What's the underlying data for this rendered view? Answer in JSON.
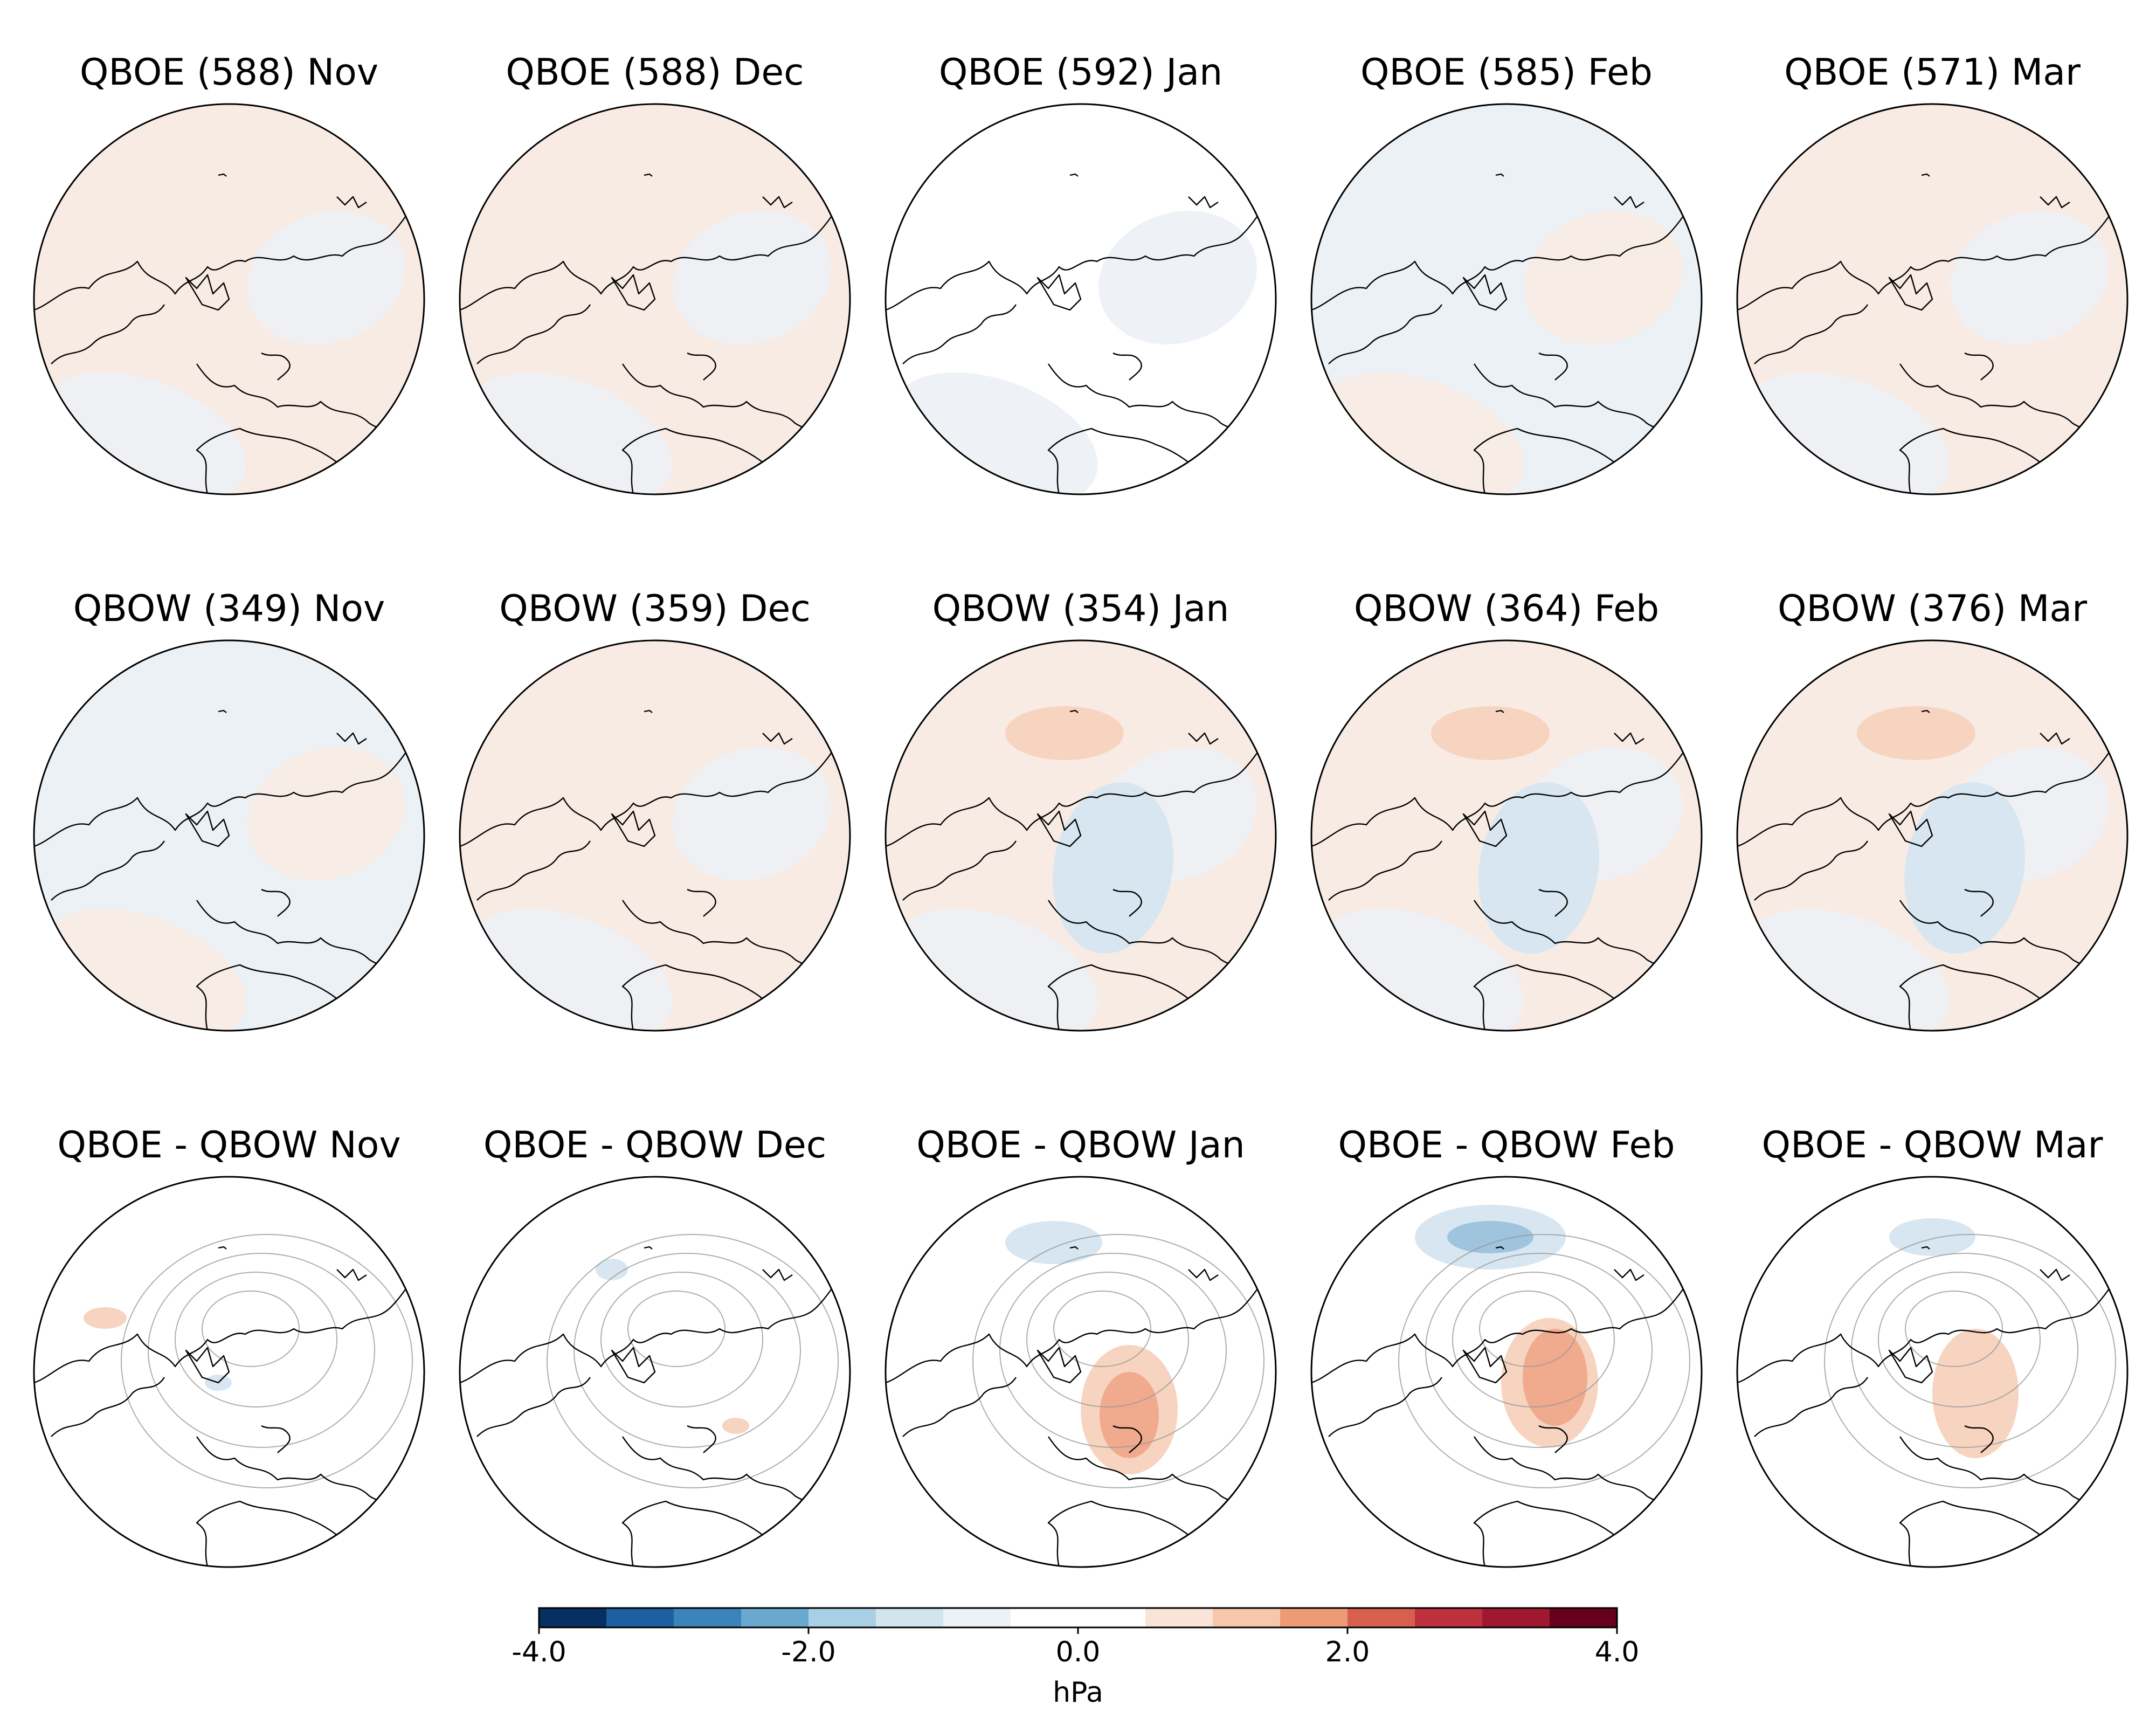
{
  "figure": {
    "rows": [
      {
        "id": "qboe",
        "style": "composite",
        "panels": [
          {
            "title": "QBOE (588) Nov",
            "month": "Nov",
            "group": "QBOE",
            "n": 588,
            "tint": "pos"
          },
          {
            "title": "QBOE (588) Dec",
            "month": "Dec",
            "group": "QBOE",
            "n": 588,
            "tint": "pos"
          },
          {
            "title": "QBOE (592) Jan",
            "month": "Jan",
            "group": "QBOE",
            "n": 592,
            "tint": "mixed"
          },
          {
            "title": "QBOE (585) Feb",
            "month": "Feb",
            "group": "QBOE",
            "n": 585,
            "tint": "neg"
          },
          {
            "title": "QBOE (571) Mar",
            "month": "Mar",
            "group": "QBOE",
            "n": 571,
            "tint": "pos"
          }
        ]
      },
      {
        "id": "qbow",
        "style": "composite",
        "panels": [
          {
            "title": "QBOW (349) Nov",
            "month": "Nov",
            "group": "QBOW",
            "n": 349,
            "tint": "neg"
          },
          {
            "title": "QBOW (359) Dec",
            "month": "Dec",
            "group": "QBOW",
            "n": 359,
            "tint": "pos"
          },
          {
            "title": "QBOW (354) Jan",
            "month": "Jan",
            "group": "QBOW",
            "n": 354,
            "tint": "pos"
          },
          {
            "title": "QBOW (364) Feb",
            "month": "Feb",
            "group": "QBOW",
            "n": 364,
            "tint": "pos"
          },
          {
            "title": "QBOW (376) Mar",
            "month": "Mar",
            "group": "QBOW",
            "n": 376,
            "tint": "pos"
          }
        ]
      },
      {
        "id": "diff",
        "style": "difference",
        "panels": [
          {
            "title": "QBOE - QBOW Nov",
            "month": "Nov",
            "group": "QBOE - QBOW",
            "tint": "white"
          },
          {
            "title": "QBOE - QBOW Dec",
            "month": "Dec",
            "group": "QBOE - QBOW",
            "tint": "white"
          },
          {
            "title": "QBOE - QBOW Jan",
            "month": "Jan",
            "group": "QBOE - QBOW",
            "tint": "white"
          },
          {
            "title": "QBOE - QBOW Feb",
            "month": "Feb",
            "group": "QBOE - QBOW",
            "tint": "white"
          },
          {
            "title": "QBOE - QBOW Mar",
            "month": "Mar",
            "group": "QBOE - QBOW",
            "tint": "white"
          }
        ]
      }
    ],
    "colorbar": {
      "unit": "hPa",
      "min": -4.0,
      "max": 4.0,
      "ticks": [
        "-4.0",
        "-2.0",
        "0.0",
        "2.0",
        "4.0"
      ],
      "tick_values": [
        -4.0,
        -2.0,
        0.0,
        2.0,
        4.0
      ],
      "colors": [
        "#053061",
        "#1d5fa1",
        "#3a84bb",
        "#6aa9cf",
        "#a8cfe4",
        "#d2e5ef",
        "#ecf2f5",
        "#ffffff",
        "#ffffff",
        "#f9e4d7",
        "#f7c7ab",
        "#ef9a76",
        "#d6604d",
        "#bc313b",
        "#9e1830",
        "#67001f"
      ]
    },
    "tints": {
      "pos": "#f8ebe4",
      "neg": "#ecf1f5",
      "white": "#ffffff",
      "blob_pos_light": "#f6d4c0",
      "blob_pos_mid": "#ef9f7f",
      "blob_neg_light": "#d7e6f0",
      "blob_neg_mid": "#9ec4de"
    }
  }
}
